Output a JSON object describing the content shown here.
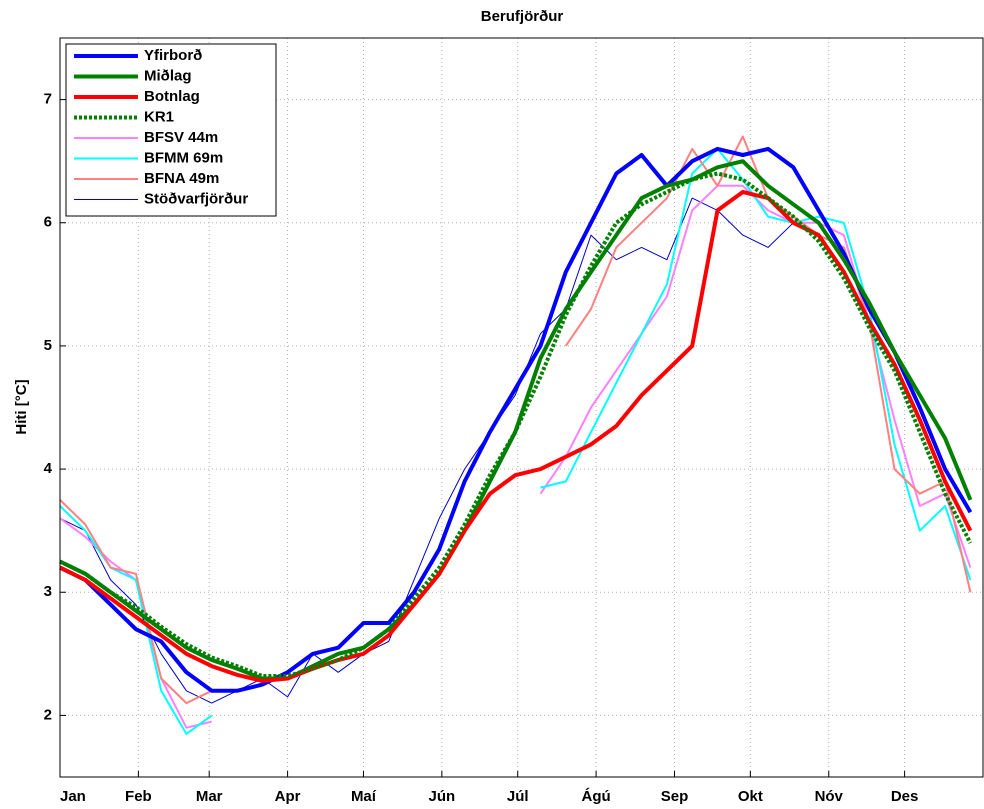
{
  "chart_data": {
    "type": "line",
    "title": "Berufjörður",
    "y_label": "Hiti [°C]",
    "grid": true,
    "legend": "upper left",
    "xlim": [
      1,
      366
    ],
    "ylim": [
      1.5,
      7.5
    ],
    "yticks": [
      2,
      3,
      4,
      5,
      6,
      7
    ],
    "xticks": [
      {
        "value": 1,
        "label": "Jan"
      },
      {
        "value": 32,
        "label": "Feb"
      },
      {
        "value": 60,
        "label": "Mar"
      },
      {
        "value": 91,
        "label": "Apr"
      },
      {
        "value": 121,
        "label": "Maí"
      },
      {
        "value": 152,
        "label": "Jún"
      },
      {
        "value": 182,
        "label": "Júl"
      },
      {
        "value": 213,
        "label": "Ágú"
      },
      {
        "value": 244,
        "label": "Sep"
      },
      {
        "value": 274,
        "label": "Okt"
      },
      {
        "value": 305,
        "label": "Nóv"
      },
      {
        "value": 335,
        "label": "Des"
      }
    ],
    "x": [
      1,
      11,
      21,
      31,
      41,
      51,
      61,
      71,
      81,
      91,
      101,
      111,
      121,
      131,
      141,
      151,
      161,
      171,
      181,
      191,
      201,
      211,
      221,
      231,
      241,
      251,
      261,
      271,
      281,
      291,
      301,
      311,
      321,
      331,
      341,
      351,
      361
    ],
    "series": [
      {
        "name": "Yfirborð",
        "color": "#0000ff",
        "width": 4,
        "dash": "none",
        "values": [
          3.2,
          3.1,
          2.9,
          2.7,
          2.6,
          2.35,
          2.2,
          2.2,
          2.25,
          2.35,
          2.5,
          2.55,
          2.75,
          2.75,
          3.0,
          3.35,
          3.9,
          4.3,
          4.65,
          5.0,
          5.6,
          6.0,
          6.4,
          6.55,
          6.3,
          6.5,
          6.6,
          6.55,
          6.6,
          6.45,
          6.1,
          5.75,
          5.3,
          4.95,
          4.5,
          4.0,
          3.65
        ]
      },
      {
        "name": "Miðlag",
        "color": "#008000",
        "width": 4,
        "dash": "none",
        "values": [
          3.25,
          3.15,
          3.0,
          2.85,
          2.7,
          2.55,
          2.45,
          2.38,
          2.3,
          2.3,
          2.4,
          2.5,
          2.55,
          2.7,
          2.9,
          3.15,
          3.5,
          3.9,
          4.3,
          4.9,
          5.3,
          5.6,
          5.9,
          6.2,
          6.3,
          6.35,
          6.45,
          6.5,
          6.3,
          6.15,
          6.0,
          5.7,
          5.35,
          4.95,
          4.6,
          4.25,
          3.75
        ]
      },
      {
        "name": "Botnlag",
        "color": "#ff0000",
        "width": 4,
        "dash": "none",
        "values": [
          3.2,
          3.1,
          2.95,
          2.8,
          2.65,
          2.5,
          2.4,
          2.33,
          2.28,
          2.3,
          2.38,
          2.45,
          2.5,
          2.65,
          2.9,
          3.15,
          3.5,
          3.8,
          3.95,
          4.0,
          4.1,
          4.2,
          4.35,
          4.6,
          4.8,
          5.0,
          6.1,
          6.25,
          6.2,
          6.0,
          5.9,
          5.6,
          5.2,
          4.85,
          4.4,
          3.9,
          3.5
        ]
      },
      {
        "name": "KR1",
        "color": "#008000",
        "width": 4,
        "dash": "3 2",
        "values": [
          3.25,
          3.15,
          3.0,
          2.88,
          2.72,
          2.58,
          2.47,
          2.4,
          2.32,
          2.32,
          2.38,
          2.45,
          2.55,
          2.7,
          2.95,
          3.2,
          3.55,
          3.95,
          4.3,
          4.75,
          5.25,
          5.65,
          6.0,
          6.15,
          6.25,
          6.35,
          6.4,
          6.35,
          6.2,
          6.05,
          5.85,
          5.55,
          5.15,
          4.8,
          4.3,
          3.8,
          3.4
        ]
      },
      {
        "name": "BFSV 44m",
        "color": "#ff80ff",
        "width": 2,
        "dash": "none",
        "values": [
          3.6,
          3.45,
          3.25,
          3.1,
          2.3,
          1.9,
          1.95,
          null,
          null,
          null,
          null,
          null,
          null,
          null,
          null,
          null,
          null,
          null,
          null,
          3.8,
          4.1,
          4.5,
          4.8,
          5.1,
          5.4,
          6.1,
          6.3,
          6.3,
          6.1,
          6.0,
          6.0,
          5.9,
          5.2,
          4.4,
          3.7,
          3.8,
          3.2
        ]
      },
      {
        "name": "BFMM 69m",
        "color": "#00ffff",
        "width": 2,
        "dash": "none",
        "values": [
          3.7,
          3.5,
          3.2,
          3.1,
          2.2,
          1.85,
          2.0,
          null,
          null,
          null,
          null,
          null,
          null,
          null,
          null,
          null,
          null,
          null,
          null,
          3.85,
          3.9,
          4.3,
          4.7,
          5.1,
          5.5,
          6.4,
          6.6,
          6.35,
          6.05,
          6.0,
          6.05,
          6.0,
          5.3,
          4.2,
          3.5,
          3.7,
          3.1
        ]
      },
      {
        "name": "BFNA 49m",
        "color": "#ff8080",
        "width": 2,
        "dash": "none",
        "values": [
          3.75,
          3.55,
          3.2,
          3.15,
          2.3,
          2.1,
          2.2,
          null,
          null,
          null,
          null,
          null,
          null,
          null,
          null,
          null,
          null,
          null,
          null,
          null,
          5.0,
          5.3,
          5.8,
          6.0,
          6.2,
          6.6,
          6.3,
          6.7,
          6.2,
          6.05,
          5.9,
          5.8,
          5.2,
          4.0,
          3.8,
          3.9,
          3.0
        ]
      },
      {
        "name": "Stöðvarfjörður",
        "color": "#0000cc",
        "width": 1,
        "dash": "none",
        "values": [
          3.6,
          3.5,
          3.1,
          2.9,
          2.5,
          2.2,
          2.1,
          2.2,
          2.3,
          2.15,
          2.5,
          2.35,
          2.5,
          2.6,
          3.1,
          3.6,
          4.0,
          4.3,
          4.6,
          5.1,
          5.3,
          5.9,
          5.7,
          5.8,
          5.7,
          6.2,
          6.1,
          5.9,
          5.8,
          6.0,
          null,
          null,
          null,
          null,
          null,
          null,
          null
        ]
      }
    ]
  }
}
